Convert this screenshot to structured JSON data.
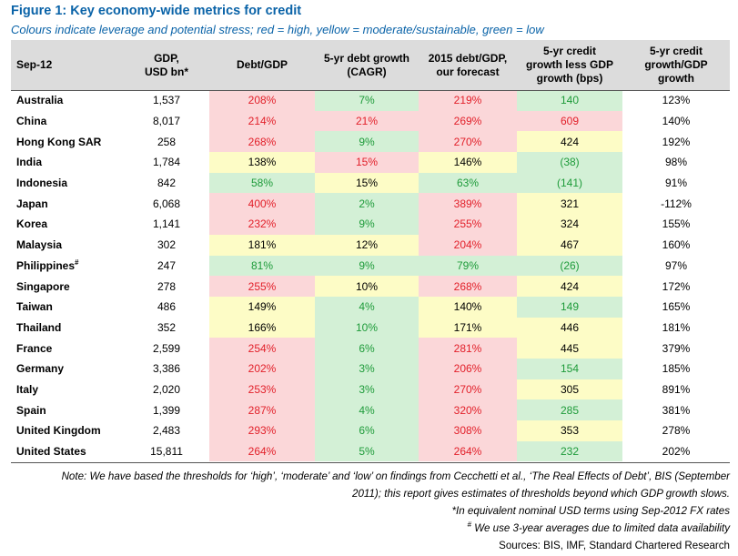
{
  "figure": {
    "title": "Figure 1: Key economy-wide metrics for credit",
    "subtitle": "Colours indicate leverage and potential stress; red = high, yellow = moderate/sustainable, green = low"
  },
  "table": {
    "headers": {
      "country": "Sep-12",
      "gdp_line1": "GDP,",
      "gdp_line2": "USD bn*",
      "debt_gdp": "Debt/GDP",
      "debt_growth_line1": "5-yr debt growth",
      "debt_growth_line2": "(CAGR)",
      "forecast_line1": "2015 debt/GDP,",
      "forecast_line2": "our forecast",
      "credit_less_line1": "5-yr credit",
      "credit_less_line2": "growth less GDP",
      "credit_less_line3": "growth (bps)",
      "credit_ratio_line1": "5-yr credit",
      "credit_ratio_line2": "growth/GDP",
      "credit_ratio_line3": "growth"
    },
    "rows": [
      {
        "country": "Australia",
        "sup": "",
        "gdp": "1,537",
        "debt_gdp": "208%",
        "debt_gdp_c": "red",
        "growth": "7%",
        "growth_c": "green",
        "forecast": "219%",
        "forecast_c": "red",
        "bps": "140",
        "bps_c": "green",
        "ratio": "123%"
      },
      {
        "country": "China",
        "sup": "",
        "gdp": "8,017",
        "debt_gdp": "214%",
        "debt_gdp_c": "red",
        "growth": "21%",
        "growth_c": "red",
        "forecast": "269%",
        "forecast_c": "red",
        "bps": "609",
        "bps_c": "red",
        "ratio": "140%"
      },
      {
        "country": "Hong Kong SAR",
        "sup": "",
        "gdp": "258",
        "debt_gdp": "268%",
        "debt_gdp_c": "red",
        "growth": "9%",
        "growth_c": "green",
        "forecast": "270%",
        "forecast_c": "red",
        "bps": "424",
        "bps_c": "yellow",
        "ratio": "192%"
      },
      {
        "country": "India",
        "sup": "",
        "gdp": "1,784",
        "debt_gdp": "138%",
        "debt_gdp_c": "yellow",
        "growth": "15%",
        "growth_c": "red",
        "forecast": "146%",
        "forecast_c": "yellow",
        "bps": "(38)",
        "bps_c": "green",
        "ratio": "98%"
      },
      {
        "country": "Indonesia",
        "sup": "",
        "gdp": "842",
        "debt_gdp": "58%",
        "debt_gdp_c": "green",
        "growth": "15%",
        "growth_c": "yellow",
        "forecast": "63%",
        "forecast_c": "green",
        "bps": "(141)",
        "bps_c": "green",
        "ratio": "91%"
      },
      {
        "country": "Japan",
        "sup": "",
        "gdp": "6,068",
        "debt_gdp": "400%",
        "debt_gdp_c": "red",
        "growth": "2%",
        "growth_c": "green",
        "forecast": "389%",
        "forecast_c": "red",
        "bps": "321",
        "bps_c": "yellow",
        "ratio": "-112%"
      },
      {
        "country": "Korea",
        "sup": "",
        "gdp": "1,141",
        "debt_gdp": "232%",
        "debt_gdp_c": "red",
        "growth": "9%",
        "growth_c": "green",
        "forecast": "255%",
        "forecast_c": "red",
        "bps": "324",
        "bps_c": "yellow",
        "ratio": "155%"
      },
      {
        "country": "Malaysia",
        "sup": "",
        "gdp": "302",
        "debt_gdp": "181%",
        "debt_gdp_c": "yellow",
        "growth": "12%",
        "growth_c": "yellow",
        "forecast": "204%",
        "forecast_c": "red",
        "bps": "467",
        "bps_c": "yellow",
        "ratio": "160%"
      },
      {
        "country": "Philippines",
        "sup": "#",
        "gdp": "247",
        "debt_gdp": "81%",
        "debt_gdp_c": "green",
        "growth": "9%",
        "growth_c": "green",
        "forecast": "79%",
        "forecast_c": "green",
        "bps": "(26)",
        "bps_c": "green",
        "ratio": "97%"
      },
      {
        "country": "Singapore",
        "sup": "",
        "gdp": "278",
        "debt_gdp": "255%",
        "debt_gdp_c": "red",
        "growth": "10%",
        "growth_c": "yellow",
        "forecast": "268%",
        "forecast_c": "red",
        "bps": "424",
        "bps_c": "yellow",
        "ratio": "172%"
      },
      {
        "country": "Taiwan",
        "sup": "",
        "gdp": "486",
        "debt_gdp": "149%",
        "debt_gdp_c": "yellow",
        "growth": "4%",
        "growth_c": "green",
        "forecast": "140%",
        "forecast_c": "yellow",
        "bps": "149",
        "bps_c": "green",
        "ratio": "165%"
      },
      {
        "country": "Thailand",
        "sup": "",
        "gdp": "352",
        "debt_gdp": "166%",
        "debt_gdp_c": "yellow",
        "growth": "10%",
        "growth_c": "green",
        "forecast": "171%",
        "forecast_c": "yellow",
        "bps": "446",
        "bps_c": "yellow",
        "ratio": "181%"
      },
      {
        "country": "France",
        "sup": "",
        "gdp": "2,599",
        "debt_gdp": "254%",
        "debt_gdp_c": "red",
        "growth": "6%",
        "growth_c": "green",
        "forecast": "281%",
        "forecast_c": "red",
        "bps": "445",
        "bps_c": "yellow",
        "ratio": "379%"
      },
      {
        "country": "Germany",
        "sup": "",
        "gdp": "3,386",
        "debt_gdp": "202%",
        "debt_gdp_c": "red",
        "growth": "3%",
        "growth_c": "green",
        "forecast": "206%",
        "forecast_c": "red",
        "bps": "154",
        "bps_c": "green",
        "ratio": "185%"
      },
      {
        "country": "Italy",
        "sup": "",
        "gdp": "2,020",
        "debt_gdp": "253%",
        "debt_gdp_c": "red",
        "growth": "3%",
        "growth_c": "green",
        "forecast": "270%",
        "forecast_c": "red",
        "bps": "305",
        "bps_c": "yellow",
        "ratio": "891%"
      },
      {
        "country": "Spain",
        "sup": "",
        "gdp": "1,399",
        "debt_gdp": "287%",
        "debt_gdp_c": "red",
        "growth": "4%",
        "growth_c": "green",
        "forecast": "320%",
        "forecast_c": "red",
        "bps": "285",
        "bps_c": "green",
        "ratio": "381%"
      },
      {
        "country": "United Kingdom",
        "sup": "",
        "gdp": "2,483",
        "debt_gdp": "293%",
        "debt_gdp_c": "red",
        "growth": "6%",
        "growth_c": "green",
        "forecast": "308%",
        "forecast_c": "red",
        "bps": "353",
        "bps_c": "yellow",
        "ratio": "278%"
      },
      {
        "country": "United States",
        "sup": "",
        "gdp": "15,811",
        "debt_gdp": "264%",
        "debt_gdp_c": "red",
        "growth": "5%",
        "growth_c": "green",
        "forecast": "264%",
        "forecast_c": "red",
        "bps": "232",
        "bps_c": "green",
        "ratio": "202%"
      }
    ]
  },
  "notes": {
    "note_main": "Note: We have based the thresholds for ‘high’, ‘moderate’ and ‘low’ on findings from Cecchetti et al., ‘The Real Effects of Debt’, BIS (September",
    "note_main_2": "2011); this report gives estimates of thresholds beyond which GDP growth slows.",
    "asterisk": "*In equivalent nominal USD terms using Sep-2012 FX rates",
    "hash_mark": "#",
    "hash": " We use 3-year averages due to limited data availability",
    "sources": "Sources: BIS, IMF, Standard Chartered Research"
  },
  "colors": {
    "title_blue": "#0a63a8",
    "red_bg": "#fbd7d9",
    "red_text": "#e2202a",
    "yellow_bg": "#fdfcc6",
    "green_bg": "#d3f0d6",
    "green_text": "#1e9b3a",
    "header_bg": "#dcdcdc"
  }
}
